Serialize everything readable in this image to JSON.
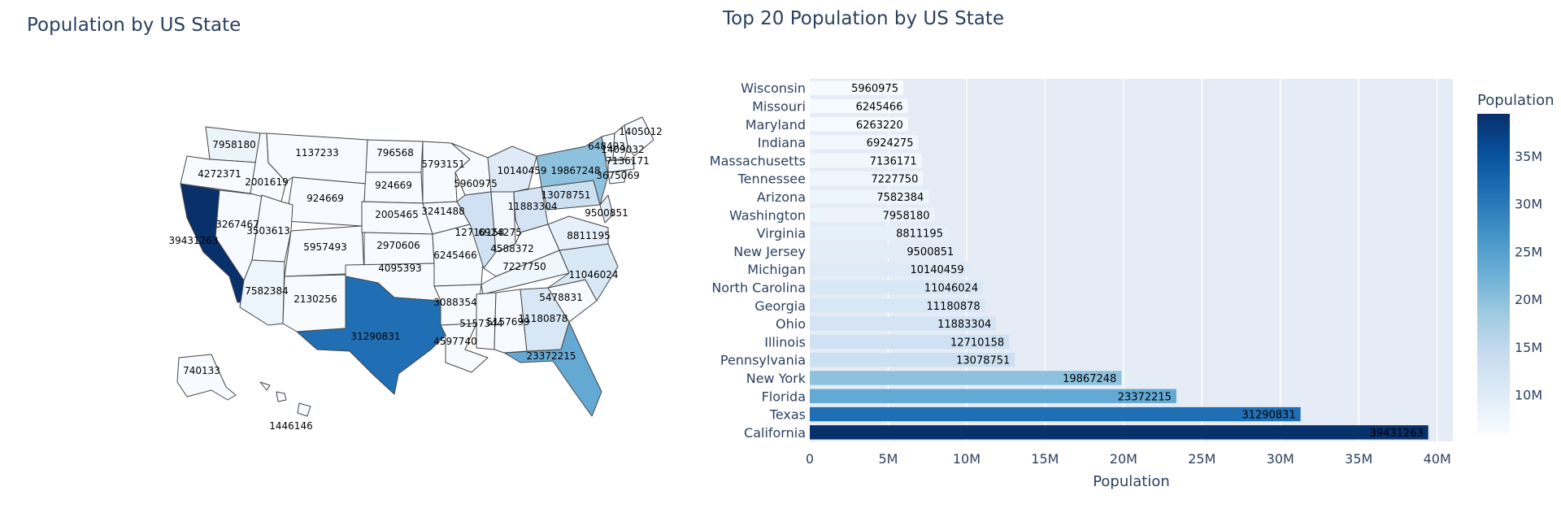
{
  "map_title": "Population by US State",
  "bar_title": "Top 20 Population by US State",
  "colorscale": [
    "#f7fbff",
    "#deebf7",
    "#c6dbef",
    "#9ecae1",
    "#6baed6",
    "#4292c6",
    "#2171b5",
    "#08519c",
    "#08306b"
  ],
  "colors": {
    "plot_bg": "#e5ecf6",
    "grid": "#ffffff",
    "text": "#2a3f5f",
    "state_border": "#444444"
  },
  "chart_data": [
    {
      "type": "choropleth",
      "title": "Population by US State",
      "labels": [
        {
          "state": "WA",
          "value": 7958180
        },
        {
          "state": "OR",
          "value": 4272371
        },
        {
          "state": "CA",
          "value": 39431263
        },
        {
          "state": "NV",
          "value": 3267467
        },
        {
          "state": "ID",
          "value": 2001619
        },
        {
          "state": "MT",
          "value": 1137233
        },
        {
          "state": "WY",
          "value": 924669
        },
        {
          "state": "UT",
          "value": 3503613
        },
        {
          "state": "CO",
          "value": 5957493
        },
        {
          "state": "AZ",
          "value": 7582384
        },
        {
          "state": "NM",
          "value": 2130256
        },
        {
          "state": "ND",
          "value": 796568
        },
        {
          "state": "SD",
          "value": 924669
        },
        {
          "state": "NE",
          "value": 2005465
        },
        {
          "state": "KS",
          "value": 2970606
        },
        {
          "state": "OK",
          "value": 4095393
        },
        {
          "state": "TX",
          "value": 31290831
        },
        {
          "state": "MN",
          "value": 5793151
        },
        {
          "state": "IA",
          "value": 3241488
        },
        {
          "state": "MO",
          "value": 6245466
        },
        {
          "state": "AR",
          "value": 3088354
        },
        {
          "state": "LA",
          "value": 4597740
        },
        {
          "state": "WI",
          "value": 5960975
        },
        {
          "state": "IL",
          "value": 12710158
        },
        {
          "state": "IN",
          "value": 6924275
        },
        {
          "state": "MI",
          "value": 10140459
        },
        {
          "state": "OH",
          "value": 11883304
        },
        {
          "state": "KY",
          "value": 4588372
        },
        {
          "state": "TN",
          "value": 7227750
        },
        {
          "state": "MS",
          "value": 5157344
        },
        {
          "state": "AL",
          "value": 5157699
        },
        {
          "state": "GA",
          "value": 11180878
        },
        {
          "state": "FL",
          "value": 23372215
        },
        {
          "state": "SC",
          "value": 5478831
        },
        {
          "state": "NC",
          "value": 11046024
        },
        {
          "state": "VA",
          "value": 8811195
        },
        {
          "state": "PA",
          "value": 13078751
        },
        {
          "state": "NY",
          "value": 19867248
        },
        {
          "state": "NJ",
          "value": 9500851
        },
        {
          "state": "MA",
          "value": 7136171
        },
        {
          "state": "CT",
          "value": 3675069
        },
        {
          "state": "ME",
          "value": 1405012
        },
        {
          "state": "VT",
          "value": 648493
        },
        {
          "state": "NH",
          "value": 1409032
        },
        {
          "state": "AK",
          "value": 740133
        },
        {
          "state": "HI",
          "value": 1446146
        }
      ]
    },
    {
      "type": "bar",
      "orientation": "horizontal",
      "title": "Top 20 Population by US State",
      "xlabel": "Population",
      "ylabel": "",
      "xlim": [
        0,
        41000000
      ],
      "xticks": [
        0,
        5000000,
        10000000,
        15000000,
        20000000,
        25000000,
        30000000,
        35000000,
        40000000
      ],
      "xtick_labels": [
        "0",
        "5M",
        "10M",
        "15M",
        "20M",
        "25M",
        "30M",
        "35M",
        "40M"
      ],
      "categories": [
        "Wisconsin",
        "Missouri",
        "Maryland",
        "Indiana",
        "Massachusetts",
        "Tennessee",
        "Arizona",
        "Washington",
        "Virginia",
        "New Jersey",
        "Michigan",
        "North Carolina",
        "Georgia",
        "Ohio",
        "Illinois",
        "Pennsylvania",
        "New York",
        "Florida",
        "Texas",
        "California"
      ],
      "values": [
        5960975,
        6245466,
        6263220,
        6924275,
        7136171,
        7227750,
        7582384,
        7958180,
        8811195,
        9500851,
        10140459,
        11046024,
        11180878,
        11883304,
        12710158,
        13078751,
        19867248,
        23372215,
        31290831,
        39431263
      ],
      "colorbar": {
        "title": "Population",
        "range": [
          5960975,
          39431263
        ],
        "ticks": [
          10000000,
          15000000,
          20000000,
          25000000,
          30000000,
          35000000
        ],
        "tick_labels": [
          "10M",
          "15M",
          "20M",
          "25M",
          "30M",
          "35M"
        ]
      },
      "grid": true
    }
  ]
}
